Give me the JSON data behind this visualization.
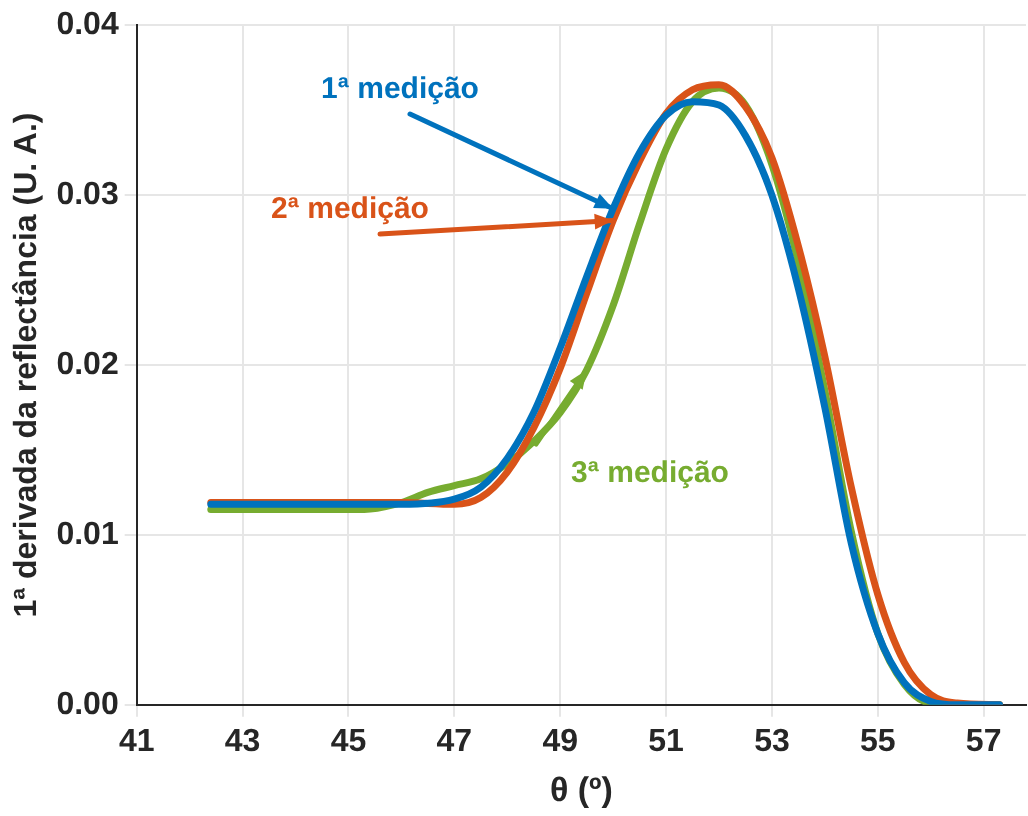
{
  "chart_data": {
    "type": "line",
    "xlabel": "θ (º)",
    "ylabel": "1ª derivada da reflectância (U. A.)",
    "xlim": [
      41,
      57.8
    ],
    "xticks": [
      41,
      43,
      45,
      47,
      49,
      51,
      53,
      55,
      57
    ],
    "ylim": [
      0,
      0.04
    ],
    "yticks": [
      {
        "value": 0,
        "label": "0.00"
      },
      {
        "value": 0.01,
        "label": "0.01"
      },
      {
        "value": 0.02,
        "label": "0.02"
      },
      {
        "value": 0.03,
        "label": "0.03"
      },
      {
        "value": 0.04,
        "label": "0.04"
      }
    ],
    "grid": true,
    "legend": false,
    "marker": "none",
    "line_style": "solid",
    "series": [
      {
        "name": "1ª medição",
        "color": "#0072bd",
        "x": [
          42.4,
          45,
          46,
          47,
          47.5,
          48,
          48.5,
          49,
          49.5,
          50,
          50.5,
          51,
          51.5,
          52,
          52.5,
          53,
          53.5,
          54,
          54.5,
          55,
          55.5,
          56,
          56.5,
          57.3
        ],
        "values": [
          0.0118,
          0.0118,
          0.0118,
          0.0121,
          0.0128,
          0.0145,
          0.0172,
          0.021,
          0.0252,
          0.0292,
          0.0325,
          0.0347,
          0.0355,
          0.0353,
          0.0335,
          0.03,
          0.0245,
          0.0175,
          0.0095,
          0.0042,
          0.0013,
          0.0002,
          0,
          0
        ]
      },
      {
        "name": "2ª medição",
        "color": "#d95319",
        "x": [
          42.4,
          46,
          47,
          47.5,
          48,
          48.5,
          49,
          49.5,
          50,
          50.5,
          51,
          51.5,
          52,
          52.5,
          53,
          53.5,
          54,
          54.5,
          55,
          55.5,
          56,
          56.5,
          57.3
        ],
        "values": [
          0.0119,
          0.0119,
          0.0118,
          0.0122,
          0.0137,
          0.0163,
          0.0198,
          0.0242,
          0.0285,
          0.032,
          0.0348,
          0.0362,
          0.0365,
          0.0352,
          0.0322,
          0.027,
          0.0205,
          0.0128,
          0.0065,
          0.0025,
          0.0006,
          0.0001,
          0
        ]
      },
      {
        "name": "3ª medição",
        "color": "#77ac30",
        "x": [
          42.4,
          45.3,
          46,
          46.5,
          47,
          47.5,
          48,
          48.5,
          49,
          49.5,
          50,
          50.5,
          51,
          51.5,
          52,
          52.5,
          53,
          53.5,
          54,
          54.5,
          55,
          55.5,
          56,
          57.3
        ],
        "values": [
          0.0115,
          0.0115,
          0.0119,
          0.0125,
          0.0129,
          0.0133,
          0.0142,
          0.0155,
          0.0172,
          0.0197,
          0.0235,
          0.0283,
          0.0327,
          0.0355,
          0.0363,
          0.0353,
          0.0318,
          0.026,
          0.0185,
          0.0102,
          0.0042,
          0.0012,
          0.0001,
          0
        ]
      }
    ]
  }
}
